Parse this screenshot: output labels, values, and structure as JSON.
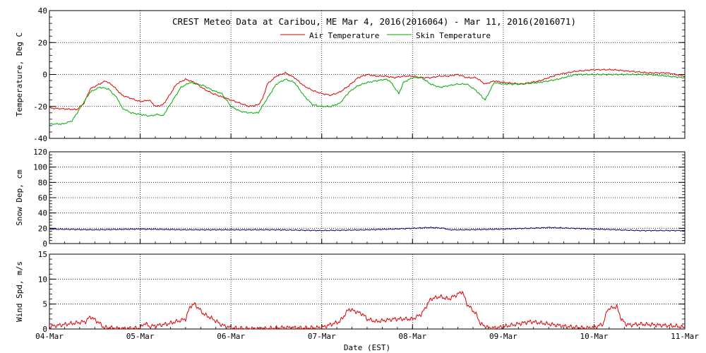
{
  "chart_data": {
    "type": "line",
    "title": "CREST Meteo Data at Caribou, ME   Mar  4, 2016(2016064) - Mar 11, 2016(2016071)",
    "xlabel": "Date (EST)",
    "x_ticks": [
      "04-Mar",
      "05-Mar",
      "06-Mar",
      "07-Mar",
      "08-Mar",
      "09-Mar",
      "10-Mar",
      "11-Mar"
    ],
    "xlim_days": [
      0,
      7
    ],
    "grid": true,
    "panels": [
      {
        "ylabel": "Temperature, Deg C",
        "ylim": [
          -40,
          40
        ],
        "yticks": [
          -40,
          -20,
          0,
          20,
          40
        ],
        "legend": "top-center",
        "series": [
          {
            "name": "Air Temperature",
            "color": "#dd0000",
            "x": [
              0,
              0.3,
              0.38,
              0.45,
              0.55,
              0.62,
              0.7,
              0.8,
              0.9,
              1.0,
              1.1,
              1.17,
              1.25,
              1.3,
              1.4,
              1.5,
              1.6,
              1.7,
              1.8,
              1.9,
              2.0,
              2.1,
              2.2,
              2.3,
              2.35,
              2.4,
              2.5,
              2.6,
              2.7,
              2.8,
              2.9,
              3.0,
              3.1,
              3.2,
              3.3,
              3.4,
              3.5,
              3.6,
              3.7,
              3.8,
              3.9,
              4.0,
              4.1,
              4.2,
              4.3,
              4.4,
              4.5,
              4.6,
              4.7,
              4.8,
              4.9,
              5.0,
              5.2,
              5.4,
              5.6,
              5.8,
              6.0,
              6.2,
              6.4,
              6.6,
              6.8,
              7.0
            ],
            "y": [
              -21,
              -22,
              -18,
              -9,
              -6,
              -4,
              -7,
              -13,
              -15,
              -17,
              -16,
              -20,
              -19,
              -15,
              -6,
              -3,
              -5,
              -9,
              -12,
              -14,
              -16,
              -18,
              -20,
              -19,
              -15,
              -6,
              -1,
              1,
              -2,
              -7,
              -10,
              -12,
              -13,
              -11,
              -7,
              -2,
              0,
              -1,
              -1,
              -2,
              -1,
              -1,
              -2,
              -2,
              -1,
              -1,
              0,
              -2,
              -2,
              -6,
              -4,
              -5,
              -6,
              -4,
              0,
              2,
              3,
              3,
              2,
              1,
              1,
              -1
            ]
          },
          {
            "name": "Skin Temperature",
            "color": "#00aa00",
            "x": [
              0,
              0.15,
              0.25,
              0.35,
              0.45,
              0.55,
              0.65,
              0.75,
              0.8,
              0.9,
              1.0,
              1.1,
              1.2,
              1.25,
              1.35,
              1.45,
              1.55,
              1.7,
              1.8,
              1.9,
              2.0,
              2.1,
              2.2,
              2.3,
              2.4,
              2.5,
              2.6,
              2.7,
              2.8,
              2.9,
              3.0,
              3.1,
              3.2,
              3.3,
              3.4,
              3.5,
              3.6,
              3.7,
              3.75,
              3.8,
              3.85,
              3.9,
              4.0,
              4.1,
              4.2,
              4.3,
              4.4,
              4.5,
              4.6,
              4.7,
              4.8,
              4.9,
              5.0,
              5.2,
              5.4,
              5.6,
              5.8,
              6.0,
              6.2,
              6.4,
              6.6,
              6.8,
              7.0
            ],
            "y": [
              -31,
              -31,
              -29,
              -20,
              -11,
              -8,
              -9,
              -15,
              -21,
              -24,
              -25,
              -26,
              -25,
              -26,
              -17,
              -8,
              -5,
              -7,
              -10,
              -12,
              -20,
              -23,
              -24,
              -24,
              -15,
              -6,
              -3,
              -5,
              -13,
              -19,
              -20,
              -20,
              -18,
              -11,
              -7,
              -5,
              -4,
              -3,
              -4,
              -8,
              -12,
              -5,
              -2,
              -2,
              -6,
              -8,
              -7,
              -6,
              -6,
              -10,
              -16,
              -5,
              -6,
              -6,
              -5,
              -3,
              0,
              0,
              0,
              0,
              0,
              -1,
              -2
            ]
          }
        ]
      },
      {
        "ylabel": "Snow Dep, cm",
        "ylim": [
          0,
          120
        ],
        "yticks": [
          0,
          20,
          40,
          60,
          80,
          100,
          120
        ],
        "series": [
          {
            "color": "#000080",
            "x": [
              0,
              0.5,
              1.0,
              1.5,
              2.0,
              2.5,
              3.0,
              3.5,
              3.8,
              4.0,
              4.2,
              4.35,
              4.4,
              4.6,
              5.0,
              5.3,
              5.5,
              6.0,
              6.5,
              7.0
            ],
            "y": [
              19,
              18,
              19,
              18,
              18,
              18,
              17,
              18,
              19,
              20,
              21,
              20,
              18,
              18,
              19,
              20,
              21,
              19,
              17,
              17
            ]
          }
        ]
      },
      {
        "ylabel": "Wind Spd, m/s",
        "ylim": [
          0,
          15
        ],
        "yticks": [
          0,
          5,
          10,
          15
        ],
        "series": [
          {
            "color": "#dd0000",
            "x": [
              0,
              0.2,
              0.4,
              0.45,
              0.55,
              0.6,
              0.8,
              1.0,
              1.05,
              1.1,
              1.3,
              1.5,
              1.55,
              1.6,
              1.7,
              1.8,
              1.9,
              2.0,
              2.2,
              2.4,
              2.6,
              2.8,
              3.0,
              3.2,
              3.3,
              3.45,
              3.5,
              3.6,
              3.8,
              4.0,
              4.1,
              4.2,
              4.3,
              4.4,
              4.5,
              4.55,
              4.6,
              4.7,
              4.75,
              4.85,
              4.95,
              5.1,
              5.3,
              5.5,
              5.7,
              5.9,
              6.0,
              6.1,
              6.15,
              6.25,
              6.3,
              6.35,
              6.4,
              6.5,
              6.7,
              6.9,
              7.0
            ],
            "y": [
              0.5,
              1,
              1.5,
              2.5,
              1.2,
              0.3,
              0.1,
              0.2,
              1.2,
              0.5,
              1,
              2,
              4.5,
              5,
              3,
              2,
              0.8,
              0.2,
              0.1,
              0.1,
              0.3,
              0.2,
              0.3,
              1.5,
              4,
              3,
              2,
              1.5,
              2,
              2,
              3,
              6,
              6.5,
              6,
              7,
              7.5,
              5,
              3,
              1,
              0.2,
              0.3,
              0.8,
              1.5,
              1,
              0.5,
              0.2,
              0.3,
              1,
              4,
              4.5,
              2,
              1,
              0.8,
              1,
              0.8,
              0.6,
              0.3
            ]
          }
        ]
      }
    ]
  }
}
